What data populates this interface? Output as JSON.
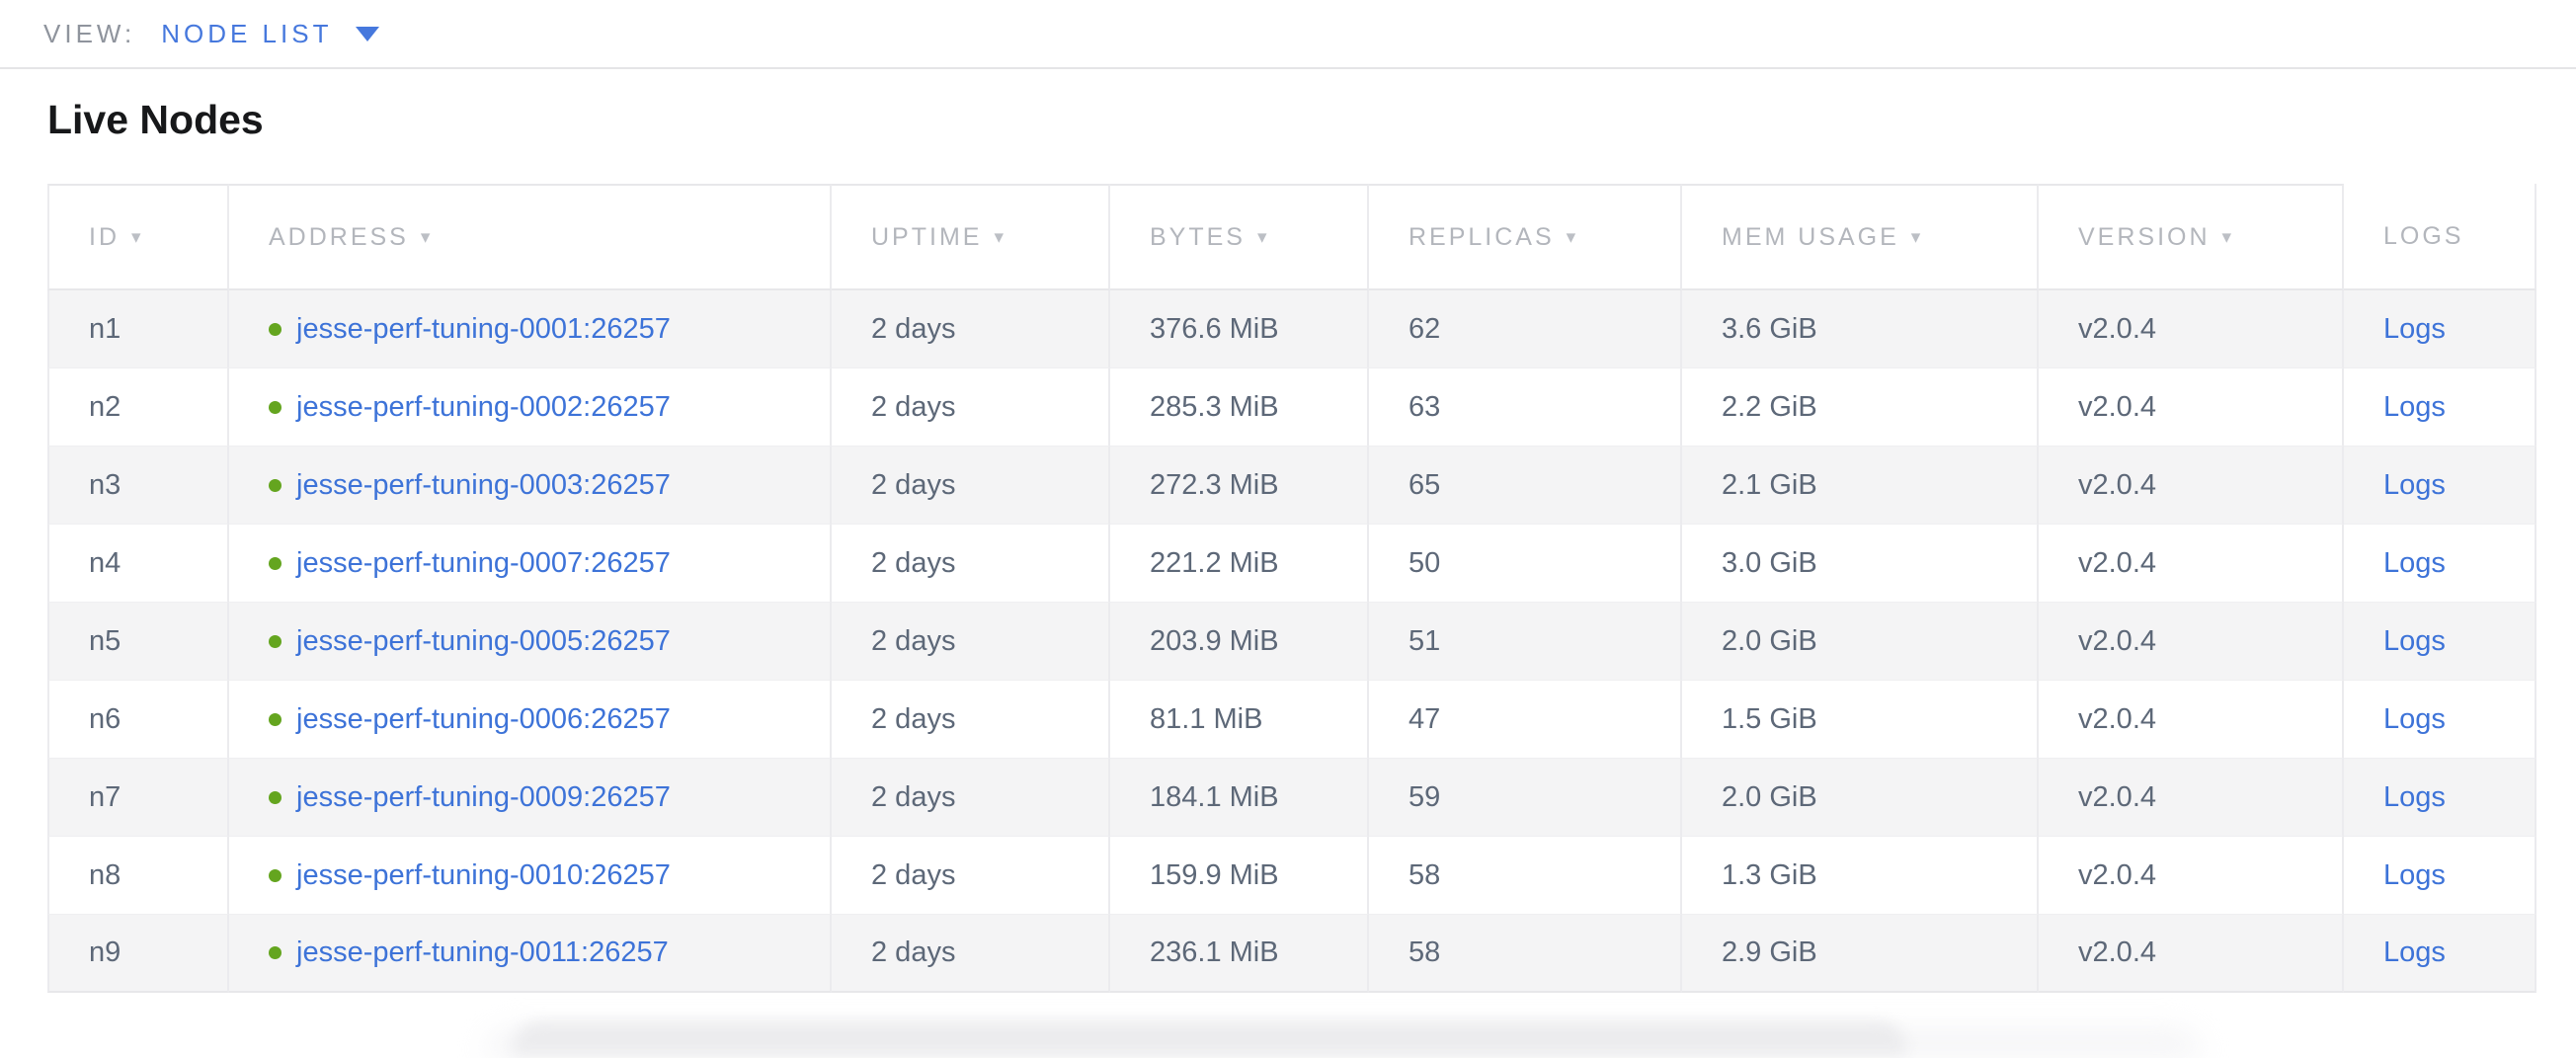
{
  "view_bar": {
    "label": "VIEW:",
    "selected": "NODE LIST"
  },
  "page": {
    "title": "Live Nodes"
  },
  "icons": {
    "sort_arrow": "▾",
    "dropdown_arrow": "▾",
    "status_dot": "●"
  },
  "colors": {
    "accent_blue": "#4678dd",
    "link_blue": "#3d73d8",
    "status_green": "#64a51f",
    "header_text_gray": "#b3b6bc",
    "body_text_slate": "#5d6878",
    "row_stripe": "#f4f4f5",
    "table_border": "#e7e7ea"
  },
  "table": {
    "headers": [
      {
        "key": "id",
        "label": "ID",
        "sortable": true
      },
      {
        "key": "address",
        "label": "ADDRESS",
        "sortable": true
      },
      {
        "key": "uptime",
        "label": "UPTIME",
        "sortable": true
      },
      {
        "key": "bytes",
        "label": "BYTES",
        "sortable": true
      },
      {
        "key": "replicas",
        "label": "REPLICAS",
        "sortable": true
      },
      {
        "key": "mem_usage",
        "label": "MEM USAGE",
        "sortable": true
      },
      {
        "key": "version",
        "label": "VERSION",
        "sortable": true
      },
      {
        "key": "logs",
        "label": "LOGS",
        "sortable": false
      }
    ],
    "rows": [
      {
        "id": "n1",
        "address": "jesse-perf-tuning-0001:26257",
        "uptime": "2 days",
        "bytes": "376.6 MiB",
        "replicas": "62",
        "mem_usage": "3.6 GiB",
        "version": "v2.0.4",
        "logs": "Logs"
      },
      {
        "id": "n2",
        "address": "jesse-perf-tuning-0002:26257",
        "uptime": "2 days",
        "bytes": "285.3 MiB",
        "replicas": "63",
        "mem_usage": "2.2 GiB",
        "version": "v2.0.4",
        "logs": "Logs"
      },
      {
        "id": "n3",
        "address": "jesse-perf-tuning-0003:26257",
        "uptime": "2 days",
        "bytes": "272.3 MiB",
        "replicas": "65",
        "mem_usage": "2.1 GiB",
        "version": "v2.0.4",
        "logs": "Logs"
      },
      {
        "id": "n4",
        "address": "jesse-perf-tuning-0007:26257",
        "uptime": "2 days",
        "bytes": "221.2 MiB",
        "replicas": "50",
        "mem_usage": "3.0 GiB",
        "version": "v2.0.4",
        "logs": "Logs"
      },
      {
        "id": "n5",
        "address": "jesse-perf-tuning-0005:26257",
        "uptime": "2 days",
        "bytes": "203.9 MiB",
        "replicas": "51",
        "mem_usage": "2.0 GiB",
        "version": "v2.0.4",
        "logs": "Logs"
      },
      {
        "id": "n6",
        "address": "jesse-perf-tuning-0006:26257",
        "uptime": "2 days",
        "bytes": "81.1 MiB",
        "replicas": "47",
        "mem_usage": "1.5 GiB",
        "version": "v2.0.4",
        "logs": "Logs"
      },
      {
        "id": "n7",
        "address": "jesse-perf-tuning-0009:26257",
        "uptime": "2 days",
        "bytes": "184.1 MiB",
        "replicas": "59",
        "mem_usage": "2.0 GiB",
        "version": "v2.0.4",
        "logs": "Logs"
      },
      {
        "id": "n8",
        "address": "jesse-perf-tuning-0010:26257",
        "uptime": "2 days",
        "bytes": "159.9 MiB",
        "replicas": "58",
        "mem_usage": "1.3 GiB",
        "version": "v2.0.4",
        "logs": "Logs"
      },
      {
        "id": "n9",
        "address": "jesse-perf-tuning-0011:26257",
        "uptime": "2 days",
        "bytes": "236.1 MiB",
        "replicas": "58",
        "mem_usage": "2.9 GiB",
        "version": "v2.0.4",
        "logs": "Logs"
      }
    ]
  }
}
